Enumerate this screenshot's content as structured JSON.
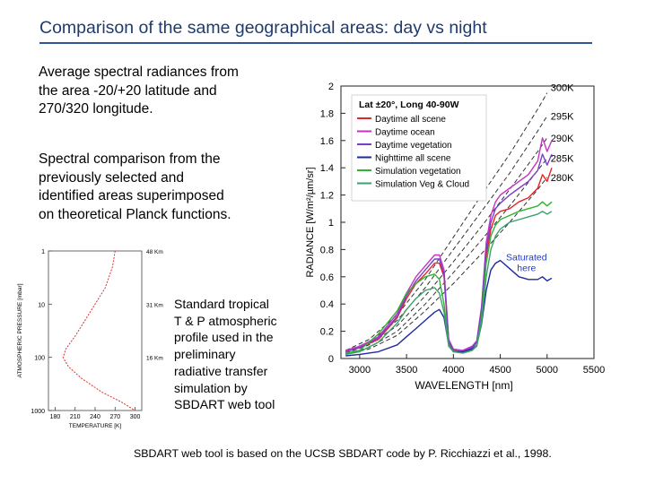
{
  "slide": {
    "title": "Comparison of the same geographical areas: day vs night",
    "intro": [
      "Average spectral radiances from",
      "the area -20/+20 latitude and",
      "270/320 longitude."
    ],
    "comparison": [
      "Spectral comparison from the",
      "previously selected and",
      "identified areas superimposed",
      "on theoretical Planck functions."
    ],
    "profile_note": [
      "Standard tropical",
      "T & P atmospheric",
      "profile used in the",
      "preliminary",
      "radiative transfer",
      "simulation by",
      "SBDART web tool"
    ],
    "footnote": "SBDART web tool is based on the UCSB SBDART code by P. Ricchiazzi et al., 1998."
  },
  "colors": {
    "title": "#1f3b6e",
    "rule": "#2e5597",
    "daytime_all": "#e8232a",
    "daytime_ocean": "#c631c6",
    "daytime_veg": "#7a3fc9",
    "nighttime_all": "#1e2a9e",
    "sim_veg": "#2fb52f",
    "sim_veg_cloud": "#3aa16f",
    "planck": "#333333",
    "profile": "#e03030"
  },
  "chart_data": [
    {
      "type": "line",
      "title": "Lat ±20°, Long 40-90W",
      "xlabel": "WAVELENGTH [nm]",
      "ylabel": "RADIANCE [W/m²/µm/sr]",
      "xlim": [
        2800,
        5500
      ],
      "ylim": [
        0,
        2
      ],
      "xticks": [
        3000,
        3500,
        4000,
        4500,
        5000,
        5500
      ],
      "yticks": [
        0,
        0.2,
        0.4,
        0.6,
        0.8,
        1,
        1.2,
        1.4,
        1.6,
        1.8,
        2
      ],
      "ytick_labels": [
        "0",
        "0.2",
        "0.4",
        "0.6",
        "0.8",
        "1",
        "1.2",
        "1.4",
        "1.6",
        "1.8",
        "2"
      ],
      "planck_temperatures": [
        "300K",
        "295K",
        "290K",
        "285K",
        "280K"
      ],
      "planck_values": [
        {
          "x": [
            2850,
            3100,
            3400,
            3700,
            4000,
            4300,
            4600,
            4900,
            5000
          ],
          "y": [
            0.06,
            0.14,
            0.32,
            0.58,
            0.89,
            1.2,
            1.5,
            1.83,
            1.95
          ]
        },
        {
          "x": [
            2850,
            3100,
            3400,
            3700,
            4000,
            4300,
            4600,
            4900,
            5000
          ],
          "y": [
            0.05,
            0.12,
            0.28,
            0.52,
            0.8,
            1.08,
            1.36,
            1.67,
            1.78
          ]
        },
        {
          "x": [
            2850,
            3100,
            3400,
            3700,
            4000,
            4300,
            4600,
            4900,
            5000
          ],
          "y": [
            0.04,
            0.1,
            0.24,
            0.46,
            0.71,
            0.97,
            1.24,
            1.52,
            1.62
          ]
        },
        {
          "x": [
            2850,
            3100,
            3400,
            3700,
            4000,
            4300,
            4600,
            4900,
            5000
          ],
          "y": [
            0.035,
            0.08,
            0.2,
            0.4,
            0.63,
            0.87,
            1.12,
            1.38,
            1.47
          ]
        },
        {
          "x": [
            2850,
            3100,
            3400,
            3700,
            4000,
            4300,
            4600,
            4900,
            5000
          ],
          "y": [
            0.03,
            0.07,
            0.17,
            0.35,
            0.55,
            0.77,
            1.0,
            1.24,
            1.33
          ]
        }
      ],
      "series": [
        {
          "name": "Daytime all scene",
          "color_key": "daytime_all",
          "x": [
            2850,
            3000,
            3200,
            3400,
            3500,
            3600,
            3700,
            3800,
            3850,
            3900,
            3950,
            4000,
            4100,
            4200,
            4250,
            4300,
            4350,
            4400,
            4450,
            4500,
            4600,
            4700,
            4800,
            4900,
            4950,
            5000,
            5050
          ],
          "y": [
            0.05,
            0.08,
            0.14,
            0.3,
            0.44,
            0.55,
            0.62,
            0.7,
            0.7,
            0.6,
            0.12,
            0.06,
            0.05,
            0.08,
            0.12,
            0.35,
            0.75,
            0.95,
            1.05,
            1.08,
            1.1,
            1.15,
            1.18,
            1.25,
            1.35,
            1.3,
            1.4
          ]
        },
        {
          "name": "Daytime ocean",
          "color_key": "daytime_ocean",
          "x": [
            2850,
            3000,
            3200,
            3400,
            3500,
            3600,
            3700,
            3800,
            3850,
            3900,
            3950,
            4000,
            4100,
            4200,
            4250,
            4300,
            4350,
            4400,
            4450,
            4500,
            4600,
            4700,
            4800,
            4900,
            4950,
            5000,
            5050
          ],
          "y": [
            0.06,
            0.09,
            0.16,
            0.33,
            0.48,
            0.6,
            0.68,
            0.76,
            0.76,
            0.65,
            0.14,
            0.07,
            0.06,
            0.09,
            0.13,
            0.38,
            0.85,
            1.05,
            1.15,
            1.2,
            1.25,
            1.3,
            1.35,
            1.45,
            1.62,
            1.52,
            1.6
          ]
        },
        {
          "name": "Daytime vegetation",
          "color_key": "daytime_veg",
          "x": [
            2850,
            3000,
            3200,
            3400,
            3500,
            3600,
            3700,
            3800,
            3850,
            3900,
            3950,
            4000,
            4100,
            4200,
            4250,
            4300,
            4350,
            4400,
            4450,
            4500,
            4600,
            4700,
            4800,
            4900,
            4950,
            5000,
            5050
          ],
          "y": [
            0.05,
            0.08,
            0.15,
            0.31,
            0.46,
            0.57,
            0.65,
            0.73,
            0.73,
            0.62,
            0.13,
            0.06,
            0.05,
            0.08,
            0.12,
            0.36,
            0.8,
            1.0,
            1.1,
            1.14,
            1.2,
            1.25,
            1.3,
            1.38,
            1.5,
            1.42,
            1.5
          ]
        },
        {
          "name": "Nighttime all scene",
          "color_key": "nighttime_all",
          "x": [
            2850,
            3000,
            3200,
            3400,
            3500,
            3600,
            3700,
            3800,
            3850,
            3900,
            3950,
            4000,
            4100,
            4200,
            4250,
            4300,
            4350,
            4400,
            4450,
            4500,
            4600,
            4700,
            4800,
            4900,
            4950,
            5000,
            5050
          ],
          "y": [
            0.02,
            0.03,
            0.05,
            0.1,
            0.16,
            0.22,
            0.28,
            0.34,
            0.36,
            0.3,
            0.1,
            0.05,
            0.05,
            0.07,
            0.1,
            0.25,
            0.5,
            0.65,
            0.7,
            0.72,
            0.66,
            0.6,
            0.58,
            0.58,
            0.6,
            0.57,
            0.59
          ]
        },
        {
          "name": "Simulation vegetation",
          "color_key": "sim_veg",
          "x": [
            2850,
            3000,
            3200,
            3400,
            3500,
            3600,
            3700,
            3800,
            3850,
            3900,
            3950,
            4000,
            4100,
            4200,
            4250,
            4300,
            4350,
            4400,
            4450,
            4500,
            4600,
            4700,
            4800,
            4900,
            4950,
            5000,
            5050
          ],
          "y": [
            0.04,
            0.06,
            0.18,
            0.35,
            0.48,
            0.55,
            0.6,
            0.62,
            0.58,
            0.4,
            0.1,
            0.05,
            0.04,
            0.06,
            0.1,
            0.3,
            0.7,
            0.9,
            0.98,
            1.02,
            1.05,
            1.08,
            1.1,
            1.12,
            1.15,
            1.12,
            1.15
          ]
        },
        {
          "name": "Simulation Veg & Cloud",
          "color_key": "sim_veg_cloud",
          "x": [
            2850,
            3000,
            3200,
            3400,
            3500,
            3600,
            3700,
            3800,
            3850,
            3900,
            3950,
            4000,
            4100,
            4200,
            4250,
            4300,
            4350,
            4400,
            4450,
            4500,
            4600,
            4700,
            4800,
            4900,
            4950,
            5000,
            5050
          ],
          "y": [
            0.03,
            0.05,
            0.12,
            0.26,
            0.36,
            0.44,
            0.5,
            0.52,
            0.48,
            0.34,
            0.09,
            0.05,
            0.04,
            0.06,
            0.09,
            0.26,
            0.6,
            0.8,
            0.9,
            0.95,
            1.0,
            1.02,
            1.04,
            1.06,
            1.08,
            1.06,
            1.08
          ]
        }
      ],
      "annotations": [
        {
          "text": [
            "Saturated",
            "here"
          ],
          "x": 4780,
          "y": 0.72
        }
      ],
      "legend": "top-left"
    },
    {
      "type": "line",
      "title": "",
      "xlabel": "TEMPERATURE [K]",
      "ylabel": "ATMOSPHERIC PRESSURE [mbar]",
      "xticks": [
        180,
        210,
        240,
        270,
        300
      ],
      "xlim": [
        170,
        310
      ],
      "yscale": "log",
      "ylim": [
        1000,
        1
      ],
      "yticks": [
        1,
        10,
        100,
        1000
      ],
      "altitude_labels": [
        "48 Km",
        "31 Km",
        "16 Km"
      ],
      "altitude_pressures": [
        1,
        10,
        100
      ],
      "series": [
        {
          "name": "Standard tropical profile",
          "color_key": "profile",
          "temperature": [
            270,
            266,
            255,
            240,
            225,
            210,
            196,
            192,
            200,
            220,
            250,
            280,
            300
          ],
          "pressure": [
            1,
            2,
            5,
            10,
            20,
            40,
            70,
            100,
            150,
            250,
            450,
            700,
            1000
          ]
        }
      ]
    }
  ]
}
